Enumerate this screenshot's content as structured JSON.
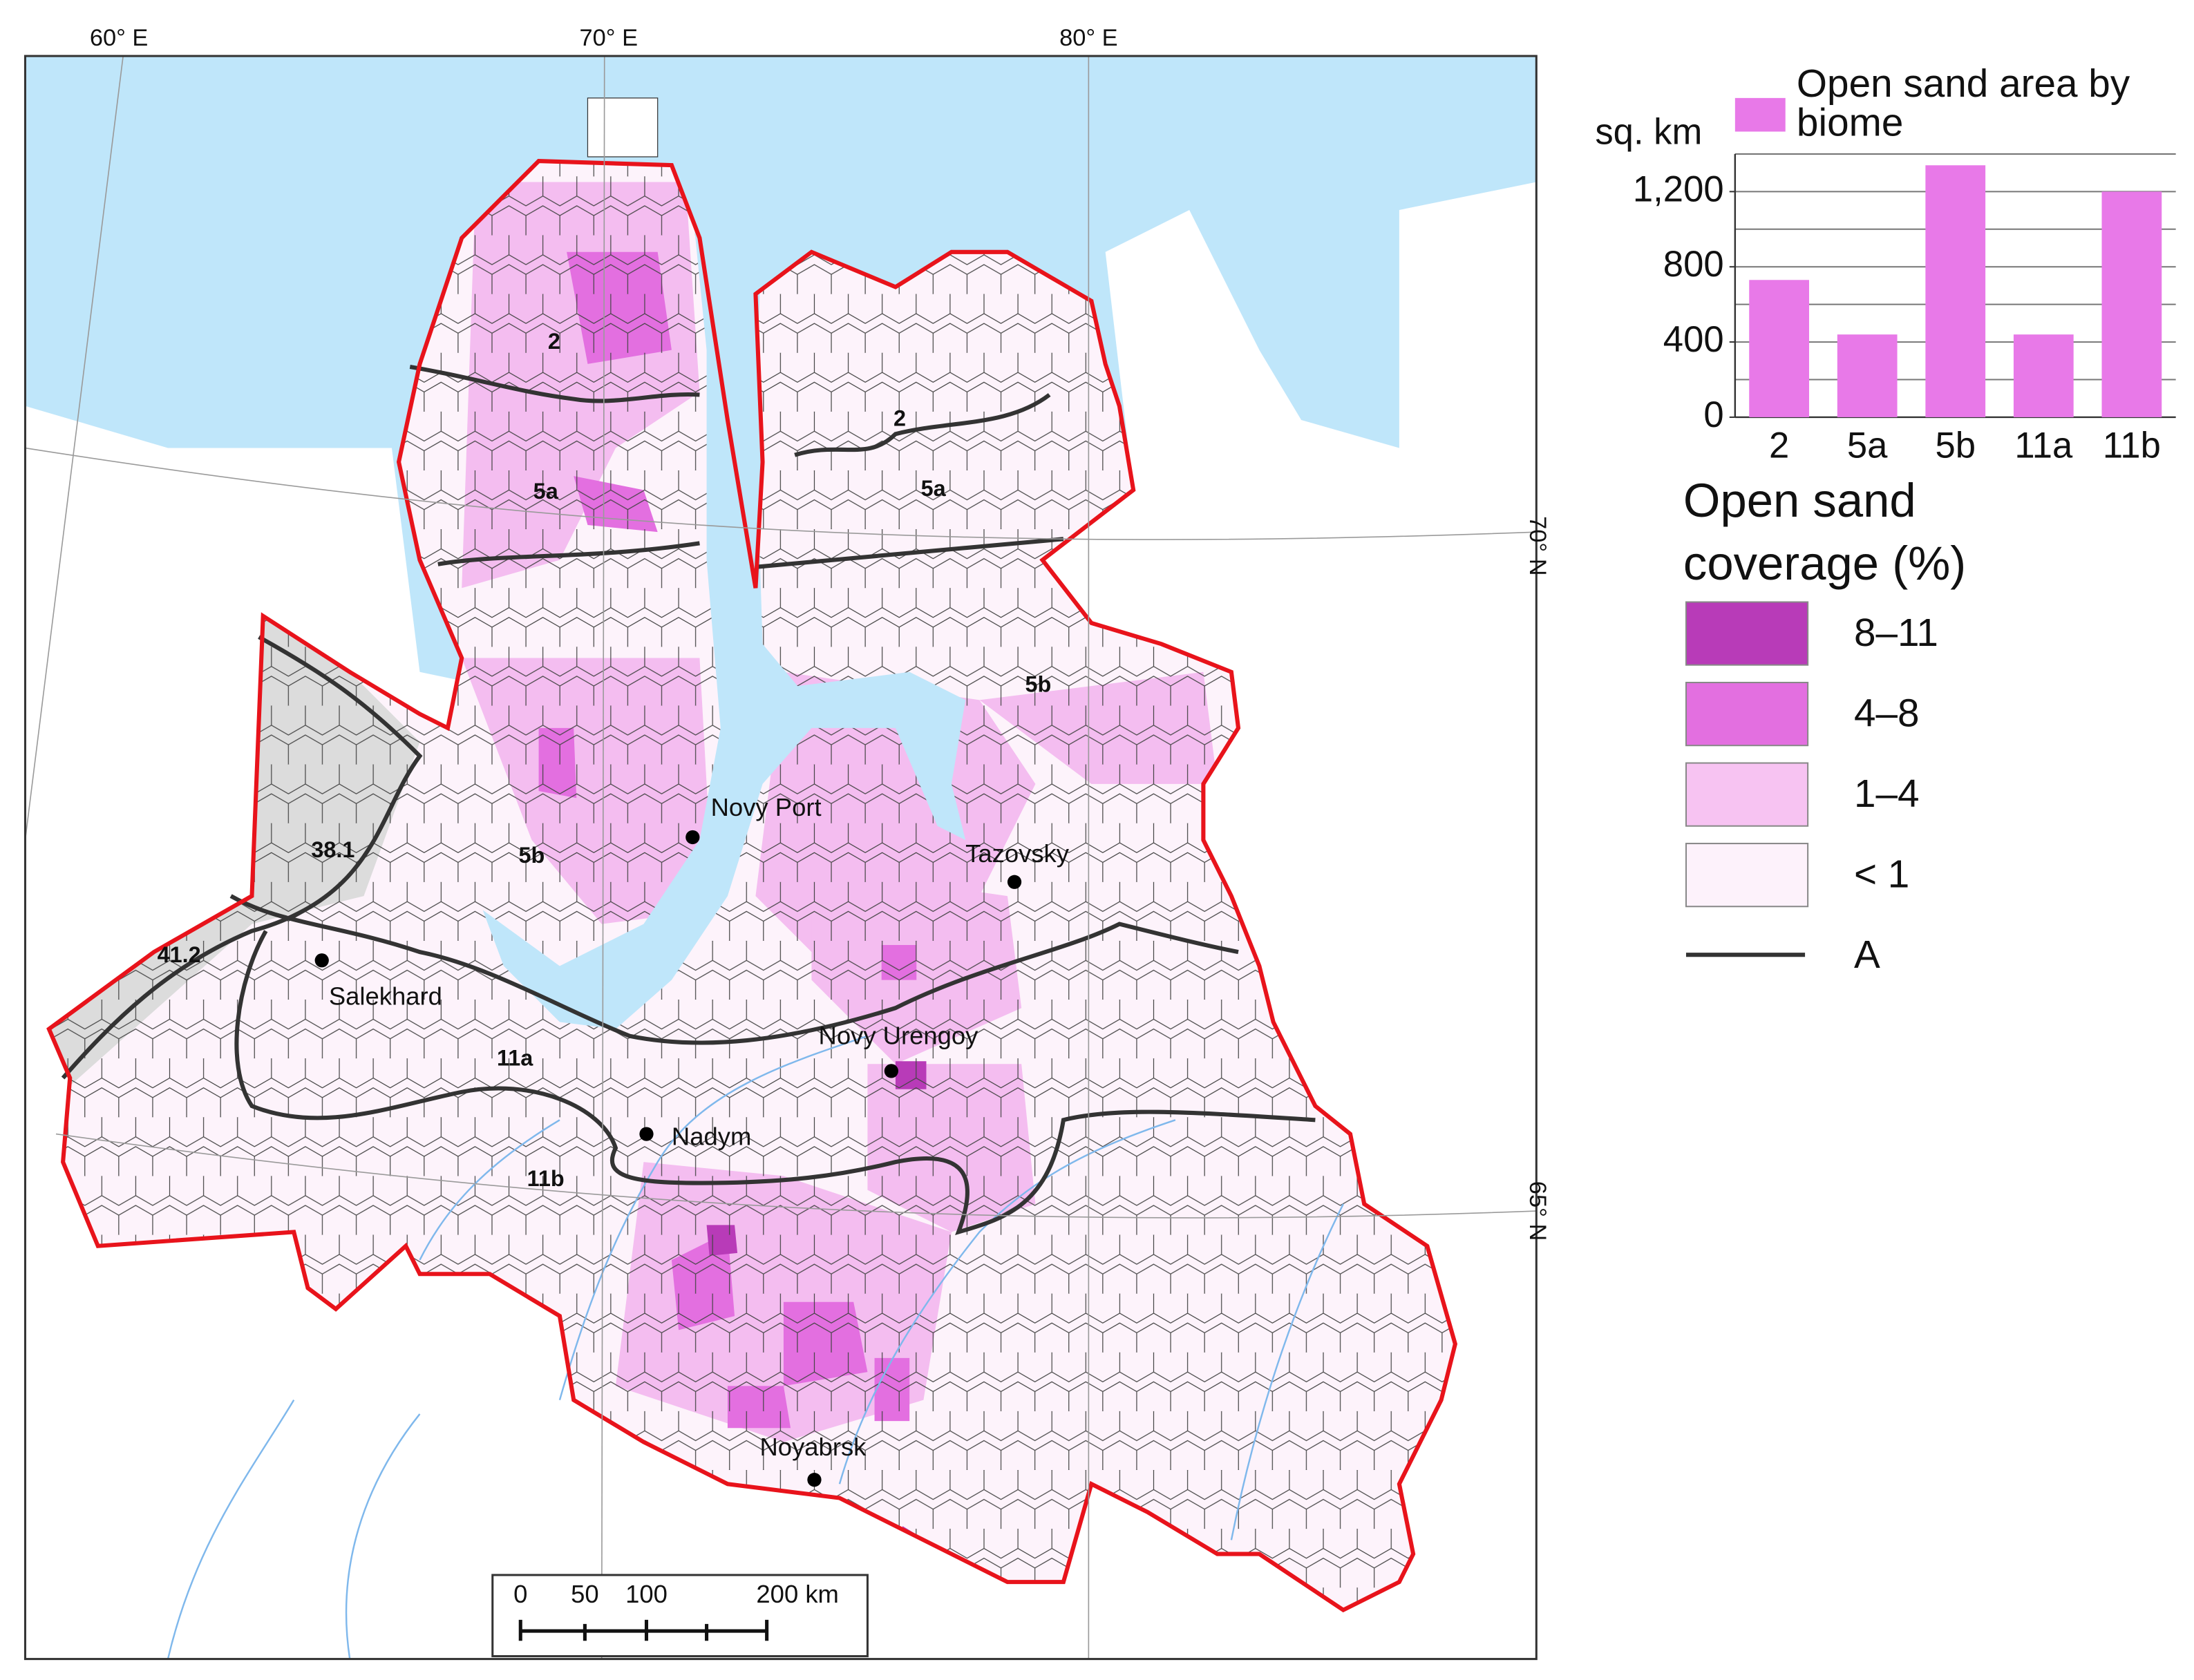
{
  "chart_data": {
    "type": "bar",
    "y_label": "sq. km",
    "categories": [
      "2",
      "5a",
      "5b",
      "11a",
      "11b"
    ],
    "series": [
      {
        "name": "Open sand area by biome",
        "color": "#e879e8",
        "values": [
          730,
          440,
          1340,
          440,
          1200
        ]
      }
    ],
    "ylim": [
      0,
      1400
    ],
    "yticks": [
      0,
      400,
      800,
      {
        "value": 1200,
        "label": "1,200"
      }
    ],
    "grid_lines": [
      200,
      400,
      600,
      800,
      1000,
      1200,
      1400
    ],
    "grid": true
  },
  "legend": {
    "title_lines": [
      "Open sand",
      "coverage (%)"
    ],
    "items": [
      {
        "label": "8–11",
        "color": "#b83bb8"
      },
      {
        "label": "4–8",
        "color": "#e36fe0"
      },
      {
        "label": "1–4",
        "color": "#f7c3f2"
      },
      {
        "label": "< 1",
        "color": "#fdf2fb"
      },
      {
        "label": "A",
        "color": "#333333"
      }
    ]
  },
  "map": {
    "graticule": [
      "60° E",
      "70° E",
      "80° E",
      "70° N",
      "65° N"
    ],
    "cities": [
      "Novy Port",
      "Tazovsky",
      "Salekhard",
      "Novy Urengoy",
      "Nadym",
      "Noyabrsk"
    ],
    "biome_labels": [
      "2",
      "5a",
      "2",
      "5a",
      "5b",
      "5b",
      "11a",
      "11b"
    ],
    "boundary_values": [
      "38.1",
      "41.2"
    ],
    "scale_labels": [
      "0",
      "50",
      "100",
      "200 km"
    ]
  }
}
